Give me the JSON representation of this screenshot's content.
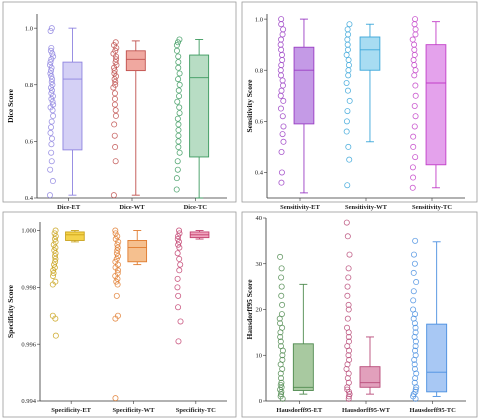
{
  "chart_data": [
    {
      "id": "dice",
      "type": "box",
      "ylabel": "Dice Score",
      "ylim": [
        0.4,
        1.05
      ],
      "yticks": [
        0.4,
        0.6,
        0.8,
        1.0
      ],
      "tick_labels": [
        "0.4",
        "0.6",
        "0.8",
        "1.0"
      ],
      "categories": [
        "Dice-ET",
        "Dice-WT",
        "Dice-TC"
      ],
      "colors": [
        "#8e84e0",
        "#c0504d",
        "#3c9a5f"
      ],
      "fills": [
        "#d4d0f5",
        "#f0a8a0",
        "#b8ddc4"
      ],
      "boxes": [
        {
          "min": 0.41,
          "q1": 0.57,
          "median": 0.82,
          "q3": 0.88,
          "max": 1.0
        },
        {
          "min": 0.41,
          "q1": 0.85,
          "median": 0.89,
          "q3": 0.92,
          "max": 0.955
        },
        {
          "min": 0.4,
          "q1": 0.545,
          "median": 0.825,
          "q3": 0.905,
          "max": 0.96
        }
      ],
      "points": [
        [
          0.41,
          0.46,
          0.5,
          0.53,
          0.56,
          0.59,
          0.61,
          0.63,
          0.65,
          0.67,
          0.69,
          0.71,
          0.72,
          0.73,
          0.74,
          0.75,
          0.76,
          0.77,
          0.78,
          0.79,
          0.8,
          0.81,
          0.82,
          0.83,
          0.84,
          0.85,
          0.86,
          0.87,
          0.88,
          0.89,
          0.9,
          0.91,
          0.92,
          0.93,
          0.99,
          1.0
        ],
        [
          0.41,
          0.53,
          0.58,
          0.62,
          0.66,
          0.69,
          0.71,
          0.73,
          0.75,
          0.77,
          0.79,
          0.8,
          0.81,
          0.82,
          0.83,
          0.84,
          0.85,
          0.86,
          0.87,
          0.88,
          0.89,
          0.9,
          0.91,
          0.92,
          0.93,
          0.94,
          0.95
        ],
        [
          0.43,
          0.47,
          0.5,
          0.53,
          0.56,
          0.58,
          0.6,
          0.62,
          0.64,
          0.66,
          0.68,
          0.7,
          0.72,
          0.74,
          0.76,
          0.78,
          0.8,
          0.82,
          0.84,
          0.86,
          0.88,
          0.9,
          0.92,
          0.94,
          0.95,
          0.96
        ]
      ]
    },
    {
      "id": "sensitivity",
      "type": "box",
      "ylabel": "Sensitivity Score",
      "ylim": [
        0.3,
        1.02
      ],
      "yticks": [
        0.4,
        0.6,
        0.8,
        1.0
      ],
      "tick_labels": [
        "0.4",
        "0.6",
        "0.8",
        "1.0"
      ],
      "categories": [
        "Sensitivity-ET",
        "Sensitivity-WT",
        "Sensitivity-TC"
      ],
      "colors": [
        "#9a3dc4",
        "#3aa6d9",
        "#c23fc8"
      ],
      "fills": [
        "#c49ae6",
        "#a8dcf2",
        "#e4a2ec"
      ],
      "boxes": [
        {
          "min": 0.32,
          "q1": 0.59,
          "median": 0.8,
          "q3": 0.89,
          "max": 1.0
        },
        {
          "min": 0.52,
          "q1": 0.8,
          "median": 0.88,
          "q3": 0.93,
          "max": 0.98
        },
        {
          "min": 0.34,
          "q1": 0.43,
          "median": 0.75,
          "q3": 0.9,
          "max": 0.99
        }
      ],
      "points": [
        [
          0.36,
          0.4,
          0.48,
          0.52,
          0.55,
          0.58,
          0.62,
          0.65,
          0.68,
          0.7,
          0.72,
          0.74,
          0.76,
          0.78,
          0.8,
          0.82,
          0.84,
          0.86,
          0.88,
          0.9,
          0.92,
          0.94,
          0.96,
          0.98,
          1.0
        ],
        [
          0.35,
          0.45,
          0.5,
          0.56,
          0.6,
          0.64,
          0.68,
          0.72,
          0.75,
          0.78,
          0.8,
          0.82,
          0.84,
          0.86,
          0.88,
          0.9,
          0.92,
          0.94,
          0.96,
          0.98
        ],
        [
          0.34,
          0.38,
          0.42,
          0.46,
          0.5,
          0.54,
          0.58,
          0.62,
          0.66,
          0.7,
          0.74,
          0.78,
          0.8,
          0.82,
          0.84,
          0.86,
          0.88,
          0.9,
          0.92,
          0.94,
          0.96,
          0.98,
          1.0
        ]
      ]
    },
    {
      "id": "specificity",
      "type": "box",
      "ylabel": "Specificity Score",
      "ylim": [
        0.994,
        1.0003
      ],
      "yticks": [
        0.994,
        0.996,
        0.998,
        1.0
      ],
      "tick_labels": [
        "0.994",
        "0.996",
        "0.998",
        "1.000"
      ],
      "categories": [
        "Specificity-ET",
        "Specificity-WT",
        "Specificity-TC"
      ],
      "colors": [
        "#c9a21a",
        "#e07b2e",
        "#c2406e"
      ],
      "fills": [
        "#f4d24a",
        "#f5c08f",
        "#f0a4be"
      ],
      "boxes": [
        {
          "min": 0.9996,
          "q1": 0.99965,
          "median": 0.99985,
          "q3": 0.99995,
          "max": 1.0
        },
        {
          "min": 0.9988,
          "q1": 0.9989,
          "median": 0.9994,
          "q3": 0.99965,
          "max": 1.0
        },
        {
          "min": 0.9997,
          "q1": 0.99975,
          "median": 0.99985,
          "q3": 0.99995,
          "max": 1.0
        }
      ],
      "points": [
        [
          0.9963,
          0.9969,
          0.997,
          0.9981,
          0.9982,
          0.9984,
          0.9985,
          0.9986,
          0.9987,
          0.9988,
          0.9989,
          0.999,
          0.9991,
          0.9992,
          0.9993,
          0.9994,
          0.9995,
          0.9996,
          0.9997,
          0.9998,
          0.9999,
          1.0
        ],
        [
          0.9941,
          0.9969,
          0.997,
          0.9977,
          0.9981,
          0.9982,
          0.9983,
          0.9984,
          0.9985,
          0.9986,
          0.9987,
          0.9988,
          0.9989,
          0.999,
          0.9991,
          0.9992,
          0.9993,
          0.9994,
          0.9995,
          0.9996,
          0.9997,
          0.9998,
          0.9999,
          1.0
        ],
        [
          0.9961,
          0.9968,
          0.9973,
          0.9977,
          0.998,
          0.9983,
          0.9986,
          0.9988,
          0.999,
          0.9992,
          0.9994,
          0.9995,
          0.9996,
          0.9997,
          0.9998,
          0.9999,
          1.0
        ]
      ]
    },
    {
      "id": "hausdorff",
      "type": "box",
      "ylabel": "Hausdorff95 Score",
      "ylim": [
        0,
        40
      ],
      "yticks": [
        0,
        10,
        20,
        30,
        40
      ],
      "tick_labels": [
        "0",
        "10",
        "20",
        "30",
        "40"
      ],
      "categories": [
        "Hausdorff95-ET",
        "Hausdorff95-WT",
        "Hausdorff95-TC"
      ],
      "colors": [
        "#4f8a4f",
        "#b84a78",
        "#4a8fe0"
      ],
      "fills": [
        "#a8c9a0",
        "#e2a0bc",
        "#a8c8f4"
      ],
      "boxes": [
        {
          "min": 1.5,
          "q1": 2.3,
          "median": 3.0,
          "q3": 12.5,
          "max": 25.5
        },
        {
          "min": 1.5,
          "q1": 3.0,
          "median": 4.0,
          "q3": 7.5,
          "max": 14.0
        },
        {
          "min": 1.0,
          "q1": 2.0,
          "median": 6.3,
          "q3": 16.8,
          "max": 34.8
        }
      ],
      "points": [
        [
          0.5,
          1,
          1.5,
          2,
          2.5,
          3,
          3.5,
          4,
          5,
          6,
          7,
          8,
          9,
          10,
          11,
          12,
          13,
          14,
          15,
          16,
          17,
          18,
          19,
          21,
          23,
          25,
          27,
          29,
          31.5
        ],
        [
          0.5,
          1,
          1.5,
          2,
          2.5,
          3,
          4,
          5,
          6,
          7,
          8,
          9,
          10,
          11,
          12,
          13,
          14,
          15,
          16,
          18,
          20,
          21,
          23,
          25,
          27,
          29,
          32,
          36,
          39
        ],
        [
          0.5,
          1,
          1.5,
          2,
          2.5,
          3,
          4,
          5,
          6,
          7,
          8,
          9,
          10,
          11,
          12,
          13,
          14,
          15,
          16,
          17,
          18,
          19,
          20,
          22,
          24,
          26,
          28,
          30,
          32,
          35
        ]
      ]
    }
  ]
}
